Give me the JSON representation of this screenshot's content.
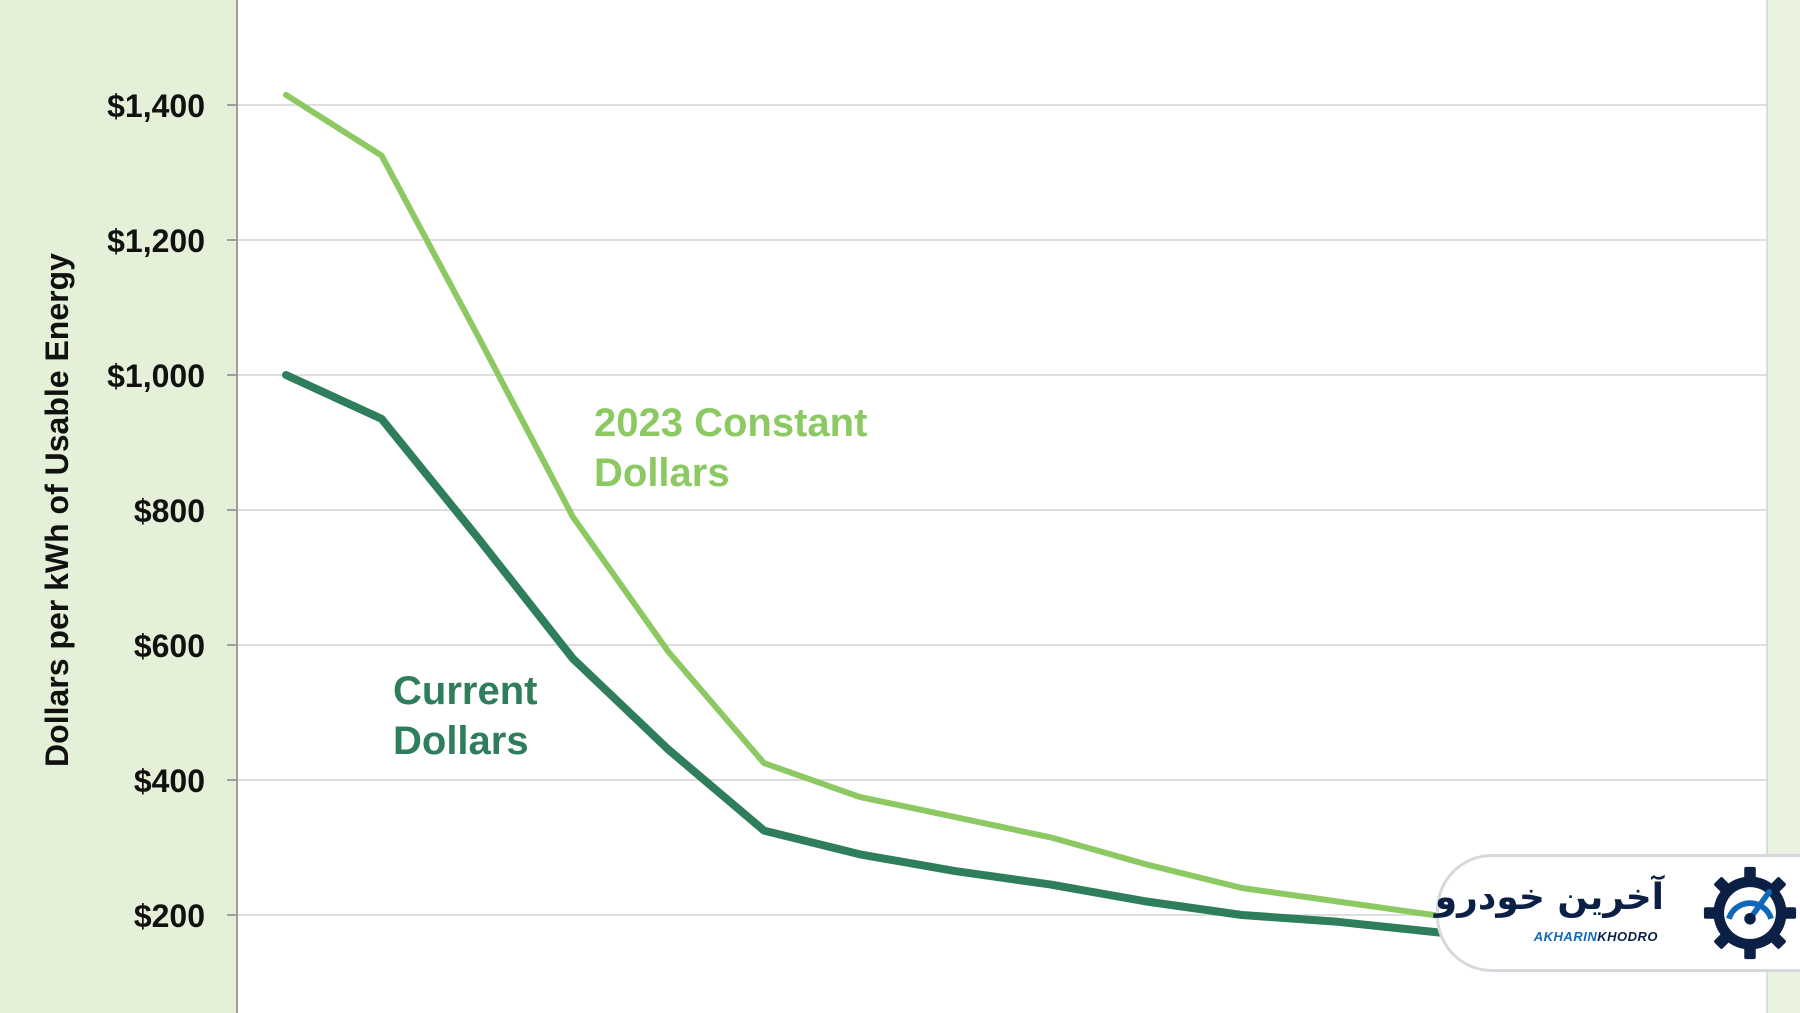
{
  "chart_data": {
    "type": "line",
    "title": "",
    "xlabel": "",
    "ylabel": "Dollars per kWh of Usable Energy",
    "ylim": [
      56,
      1557
    ],
    "y_ticks": [
      200,
      400,
      600,
      800,
      1000,
      1200,
      1400
    ],
    "y_tick_labels": [
      "$200",
      "$400",
      "$600",
      "$800",
      "$1,000",
      "$1,200",
      "$1,400"
    ],
    "x": [
      0,
      1,
      2,
      3,
      4,
      5,
      6,
      7,
      8,
      9,
      10,
      11,
      12,
      13,
      14,
      15
    ],
    "series": [
      {
        "name": "2023 Constant Dollars",
        "color": "#8cc963",
        "values": [
          1415,
          1325,
          1060,
          790,
          590,
          425,
          375,
          345,
          315,
          275,
          240,
          220,
          200,
          180,
          160,
          140
        ]
      },
      {
        "name": "Current Dollars",
        "color": "#2e7d5b",
        "values": [
          1000,
          935,
          760,
          580,
          445,
          325,
          290,
          265,
          245,
          220,
          200,
          190,
          175,
          160,
          150,
          140
        ]
      }
    ],
    "grid": true,
    "colors": {
      "left_band": "#e4f1d8",
      "right_band": "#e9f3df",
      "gridline": "#dedede",
      "axis": "#9e9e9e"
    }
  },
  "labels": {
    "constant_line1": "2023 Constant",
    "constant_line2": "Dollars",
    "current_line1": "Current",
    "current_line2": "Dollars"
  },
  "watermark": {
    "text_fa": "آخرین خودرو",
    "text_en_part1": "AKHARIN",
    "text_en_part2": "KHODRO",
    "icon": "gear-speedometer-icon"
  }
}
